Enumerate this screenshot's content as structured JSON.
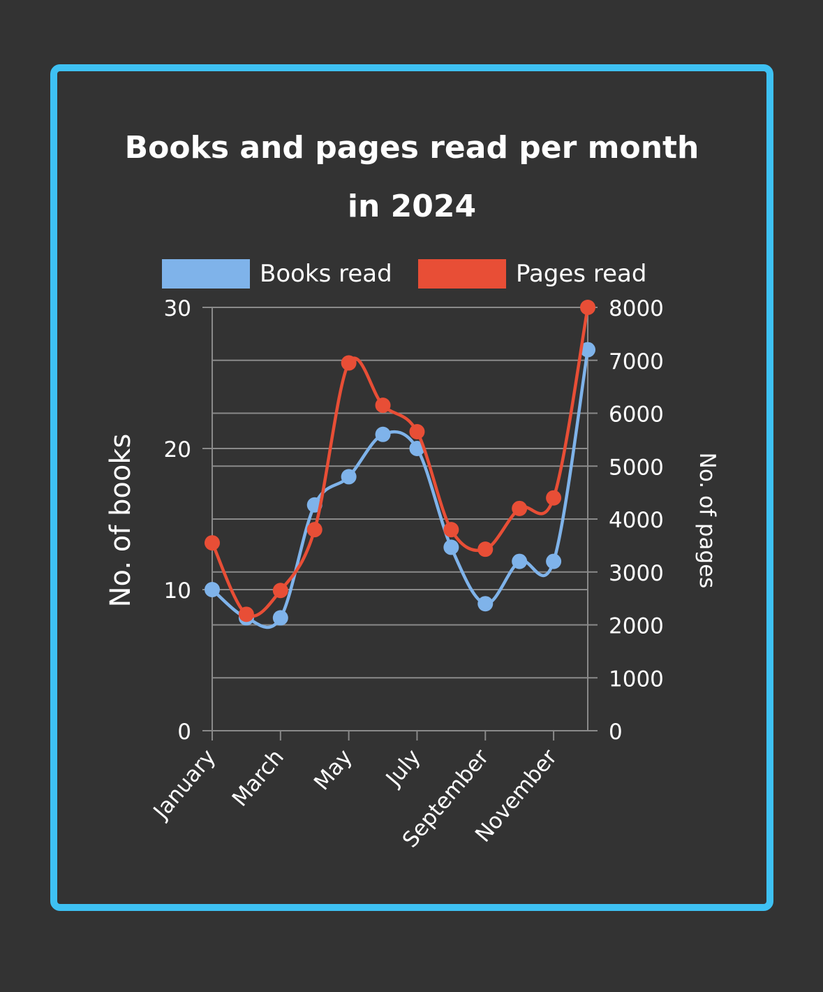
{
  "title_lines": [
    "Books and pages read per month",
    "in 2024"
  ],
  "chart_data": {
    "type": "line",
    "title": "Books and pages read per month in 2024",
    "x": [
      "January",
      "February",
      "March",
      "April",
      "May",
      "June",
      "July",
      "August",
      "September",
      "October",
      "November",
      "December"
    ],
    "x_tick_labels": [
      "January",
      "March",
      "May",
      "July",
      "September",
      "November"
    ],
    "series": [
      {
        "name": "Books read",
        "axis": "left",
        "color": "#7fb3ea",
        "values": [
          10,
          8,
          8,
          16,
          18,
          21,
          20,
          13,
          9,
          12,
          12,
          27
        ]
      },
      {
        "name": "Pages read",
        "axis": "right",
        "color": "#e84e36",
        "values": [
          3550,
          2200,
          2650,
          3800,
          6950,
          6150,
          5650,
          3800,
          3430,
          4200,
          4400,
          8000
        ]
      }
    ],
    "y_left": {
      "label": "No. of books",
      "range": [
        0,
        30
      ],
      "ticks": [
        0,
        10,
        20,
        30
      ]
    },
    "y_right": {
      "label": "No. of pages",
      "range": [
        0,
        8000
      ],
      "ticks": [
        0,
        1000,
        2000,
        3000,
        4000,
        5000,
        6000,
        7000,
        8000
      ]
    },
    "grid": true,
    "legend_position": "top"
  }
}
